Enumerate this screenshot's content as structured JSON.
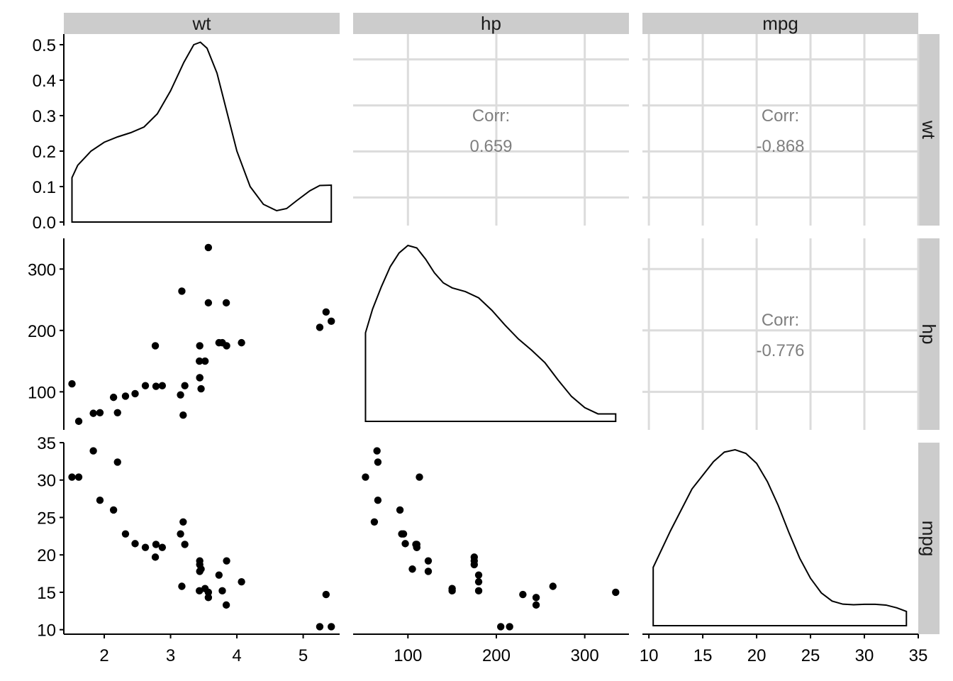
{
  "chart_data": {
    "type": "scatter",
    "variables": [
      "wt",
      "hp",
      "mpg"
    ],
    "axes": {
      "wt": {
        "lim": [
          1.39,
          5.55
        ],
        "ticks": [
          2,
          3,
          4,
          5
        ],
        "tick_labels": [
          "2",
          "3",
          "4",
          "5"
        ]
      },
      "hp": {
        "lim": [
          38,
          350
        ],
        "ticks": [
          100,
          200,
          300
        ],
        "tick_labels": [
          "100",
          "200",
          "300"
        ]
      },
      "mpg": {
        "lim": [
          9.4,
          35
        ],
        "ticks": [
          10,
          15,
          20,
          25,
          30,
          35
        ],
        "tick_labels": [
          "10",
          "15",
          "20",
          "25",
          "30",
          "35"
        ]
      },
      "density_wt": {
        "lim": [
          -0.01,
          0.53
        ],
        "ticks": [
          0,
          0.1,
          0.2,
          0.3,
          0.4,
          0.5
        ],
        "tick_labels": [
          "0.0",
          "0.1",
          "0.2",
          "0.3",
          "0.4",
          "0.5"
        ]
      }
    },
    "correlations": [
      {
        "pair": [
          "wt",
          "hp"
        ],
        "label": "Corr:",
        "value": "0.659"
      },
      {
        "pair": [
          "wt",
          "mpg"
        ],
        "label": "Corr:",
        "value": "-0.868"
      },
      {
        "pair": [
          "hp",
          "mpg"
        ],
        "label": "Corr:",
        "value": "-0.776"
      }
    ],
    "densities": {
      "wt": [
        [
          1.513,
          0.125
        ],
        [
          1.6,
          0.16
        ],
        [
          1.8,
          0.2
        ],
        [
          2.0,
          0.225
        ],
        [
          2.2,
          0.24
        ],
        [
          2.4,
          0.252
        ],
        [
          2.6,
          0.268
        ],
        [
          2.8,
          0.305
        ],
        [
          3.0,
          0.37
        ],
        [
          3.2,
          0.45
        ],
        [
          3.35,
          0.5
        ],
        [
          3.45,
          0.507
        ],
        [
          3.55,
          0.49
        ],
        [
          3.7,
          0.42
        ],
        [
          3.85,
          0.31
        ],
        [
          4.0,
          0.2
        ],
        [
          4.2,
          0.1
        ],
        [
          4.4,
          0.05
        ],
        [
          4.6,
          0.032
        ],
        [
          4.75,
          0.038
        ],
        [
          4.9,
          0.06
        ],
        [
          5.1,
          0.088
        ],
        [
          5.25,
          0.103
        ],
        [
          5.424,
          0.104
        ]
      ],
      "hp": [
        [
          52,
          0.0071
        ],
        [
          60,
          0.009
        ],
        [
          70,
          0.0108
        ],
        [
          80,
          0.0124
        ],
        [
          90,
          0.0135
        ],
        [
          100,
          0.0141
        ],
        [
          110,
          0.0139
        ],
        [
          120,
          0.013
        ],
        [
          130,
          0.0119
        ],
        [
          140,
          0.0111
        ],
        [
          150,
          0.0107
        ],
        [
          165,
          0.0104
        ],
        [
          180,
          0.0099
        ],
        [
          195,
          0.0089
        ],
        [
          210,
          0.0077
        ],
        [
          225,
          0.0066
        ],
        [
          240,
          0.0057
        ],
        [
          255,
          0.0047
        ],
        [
          270,
          0.0033
        ],
        [
          285,
          0.002
        ],
        [
          300,
          0.0011
        ],
        [
          315,
          0.0006
        ],
        [
          330,
          0.0006
        ],
        [
          335,
          0.0006
        ]
      ],
      "mpg": [
        [
          10.4,
          0.032
        ],
        [
          12,
          0.052
        ],
        [
          14,
          0.075
        ],
        [
          16,
          0.09
        ],
        [
          17,
          0.0952
        ],
        [
          18,
          0.0965
        ],
        [
          19,
          0.0945
        ],
        [
          20,
          0.089
        ],
        [
          21,
          0.079
        ],
        [
          22,
          0.066
        ],
        [
          23,
          0.051
        ],
        [
          24,
          0.037
        ],
        [
          25,
          0.026
        ],
        [
          26,
          0.018
        ],
        [
          27,
          0.0135
        ],
        [
          28,
          0.0118
        ],
        [
          29,
          0.0115
        ],
        [
          30,
          0.0117
        ],
        [
          31,
          0.0117
        ],
        [
          32,
          0.0113
        ],
        [
          33,
          0.0098
        ],
        [
          33.9,
          0.0078
        ]
      ]
    },
    "points": [
      {
        "wt": 2.62,
        "hp": 110,
        "mpg": 21.0
      },
      {
        "wt": 2.875,
        "hp": 110,
        "mpg": 21.0
      },
      {
        "wt": 2.32,
        "hp": 93,
        "mpg": 22.8
      },
      {
        "wt": 3.215,
        "hp": 110,
        "mpg": 21.4
      },
      {
        "wt": 3.44,
        "hp": 175,
        "mpg": 18.7
      },
      {
        "wt": 3.46,
        "hp": 105,
        "mpg": 18.1
      },
      {
        "wt": 3.57,
        "hp": 245,
        "mpg": 14.3
      },
      {
        "wt": 3.19,
        "hp": 62,
        "mpg": 24.4
      },
      {
        "wt": 3.15,
        "hp": 95,
        "mpg": 22.8
      },
      {
        "wt": 3.44,
        "hp": 123,
        "mpg": 19.2
      },
      {
        "wt": 3.44,
        "hp": 123,
        "mpg": 17.8
      },
      {
        "wt": 4.07,
        "hp": 180,
        "mpg": 16.4
      },
      {
        "wt": 3.73,
        "hp": 180,
        "mpg": 17.3
      },
      {
        "wt": 3.78,
        "hp": 180,
        "mpg": 15.2
      },
      {
        "wt": 5.25,
        "hp": 205,
        "mpg": 10.4
      },
      {
        "wt": 5.424,
        "hp": 215,
        "mpg": 10.4
      },
      {
        "wt": 5.345,
        "hp": 230,
        "mpg": 14.7
      },
      {
        "wt": 2.2,
        "hp": 66,
        "mpg": 32.4
      },
      {
        "wt": 1.615,
        "hp": 52,
        "mpg": 30.4
      },
      {
        "wt": 1.835,
        "hp": 65,
        "mpg": 33.9
      },
      {
        "wt": 2.465,
        "hp": 97,
        "mpg": 21.5
      },
      {
        "wt": 3.52,
        "hp": 150,
        "mpg": 15.5
      },
      {
        "wt": 3.435,
        "hp": 150,
        "mpg": 15.2
      },
      {
        "wt": 3.84,
        "hp": 245,
        "mpg": 13.3
      },
      {
        "wt": 3.845,
        "hp": 175,
        "mpg": 19.2
      },
      {
        "wt": 1.935,
        "hp": 66,
        "mpg": 27.3
      },
      {
        "wt": 2.14,
        "hp": 91,
        "mpg": 26.0
      },
      {
        "wt": 1.513,
        "hp": 113,
        "mpg": 30.4
      },
      {
        "wt": 3.17,
        "hp": 264,
        "mpg": 15.8
      },
      {
        "wt": 2.77,
        "hp": 175,
        "mpg": 19.7
      },
      {
        "wt": 3.57,
        "hp": 335,
        "mpg": 15.0
      },
      {
        "wt": 2.78,
        "hp": 109,
        "mpg": 21.4
      }
    ]
  }
}
